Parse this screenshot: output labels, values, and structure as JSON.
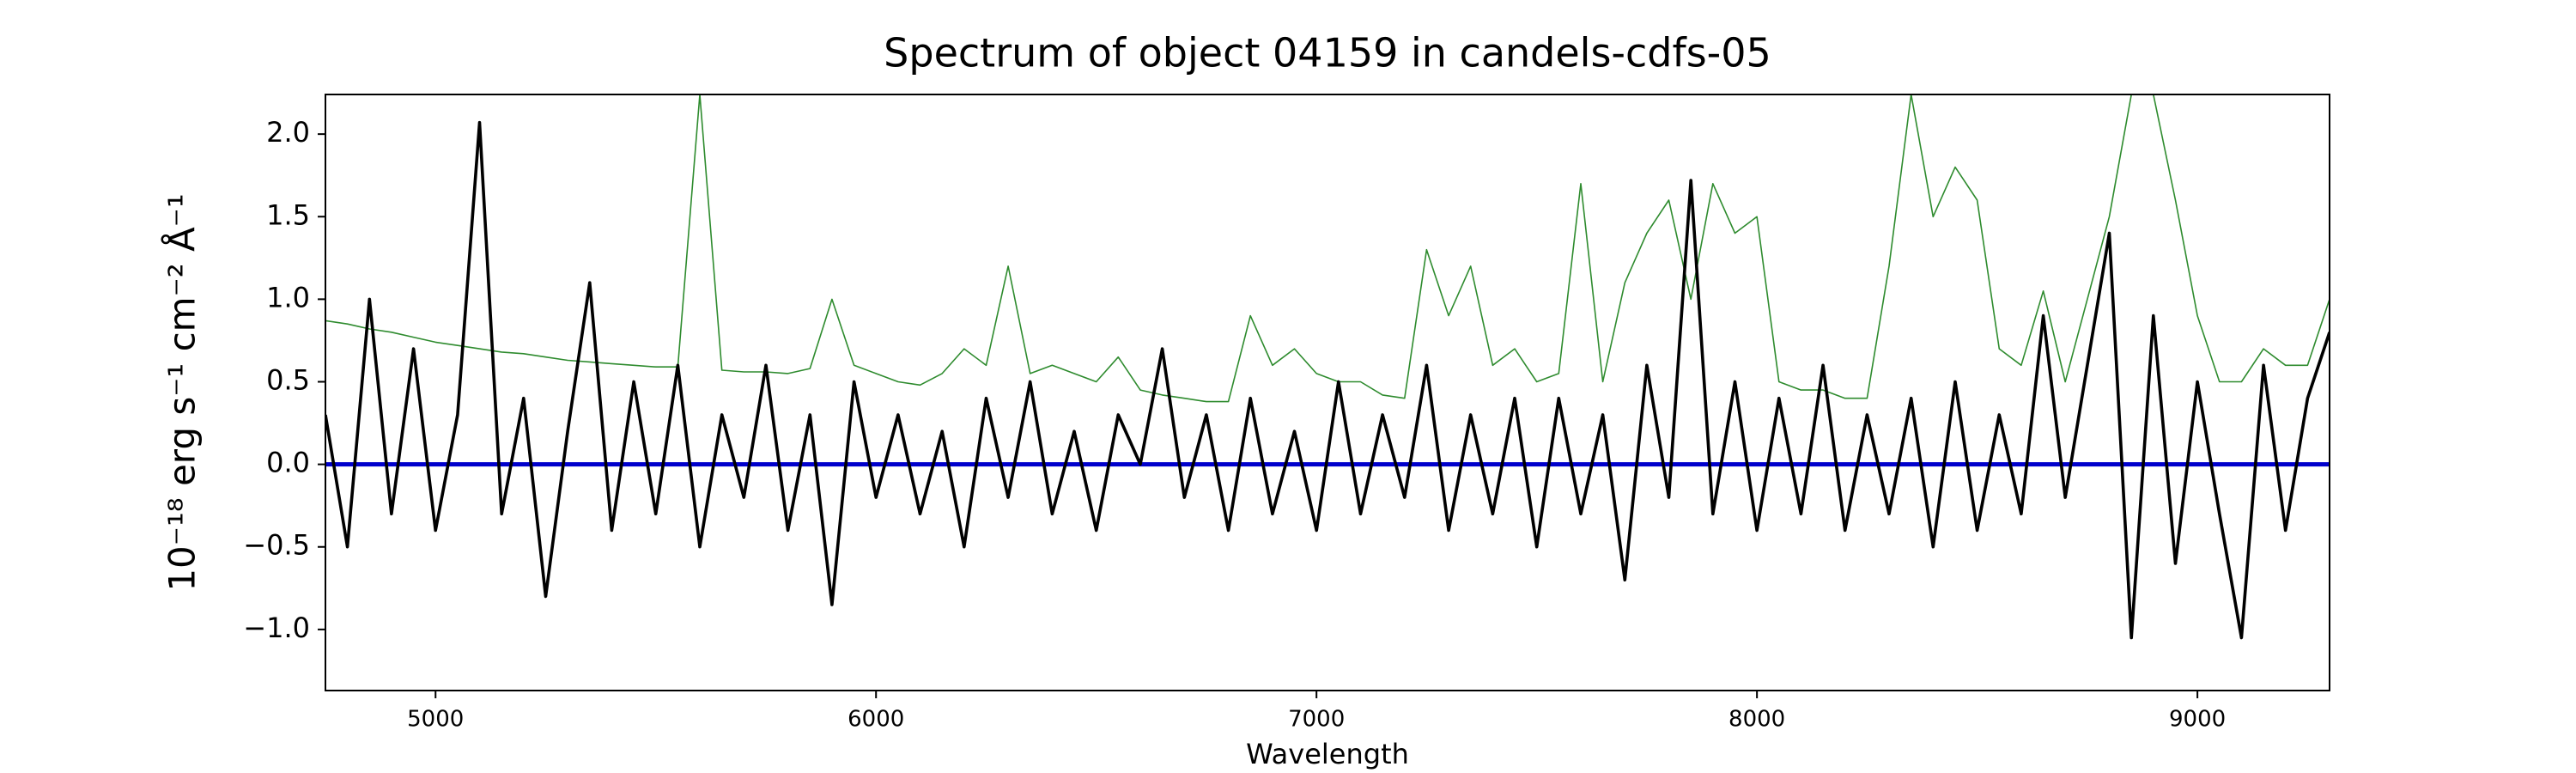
{
  "chart_data": {
    "type": "line",
    "title": "Spectrum of object 04159 in candels-cdfs-05",
    "x_label": "Wavelength",
    "y_label": "10⁻¹⁸ erg s⁻¹ cm⁻² Å⁻¹",
    "x": [
      4750,
      4800,
      4850,
      4900,
      4950,
      5000,
      5050,
      5100,
      5150,
      5200,
      5250,
      5300,
      5350,
      5400,
      5450,
      5500,
      5550,
      5600,
      5650,
      5700,
      5750,
      5800,
      5850,
      5900,
      5950,
      6000,
      6050,
      6100,
      6150,
      6200,
      6250,
      6300,
      6350,
      6400,
      6450,
      6500,
      6550,
      6600,
      6650,
      6700,
      6750,
      6800,
      6850,
      6900,
      6950,
      7000,
      7050,
      7100,
      7150,
      7200,
      7250,
      7300,
      7350,
      7400,
      7450,
      7500,
      7550,
      7600,
      7650,
      7700,
      7750,
      7800,
      7850,
      7900,
      7950,
      8000,
      8050,
      8100,
      8150,
      8200,
      8250,
      8300,
      8350,
      8400,
      8450,
      8500,
      8550,
      8600,
      8650,
      8700,
      8750,
      8800,
      8850,
      8900,
      8950,
      9000,
      9050,
      9100,
      9150,
      9200,
      9250,
      9300
    ],
    "series": [
      {
        "color": "#2e8b2e",
        "width": 1.6,
        "values": [
          0.87,
          0.85,
          0.82,
          0.8,
          0.77,
          0.74,
          0.72,
          0.7,
          0.68,
          0.67,
          0.65,
          0.63,
          0.62,
          0.61,
          0.6,
          0.59,
          0.59,
          2.24,
          0.57,
          0.56,
          0.56,
          0.55,
          0.58,
          1.0,
          0.6,
          0.55,
          0.5,
          0.48,
          0.55,
          0.7,
          0.6,
          1.2,
          0.55,
          0.6,
          0.55,
          0.5,
          0.65,
          0.45,
          0.42,
          0.4,
          0.38,
          0.38,
          0.9,
          0.6,
          0.7,
          0.55,
          0.5,
          0.5,
          0.42,
          0.4,
          1.3,
          0.9,
          1.2,
          0.6,
          0.7,
          0.5,
          0.55,
          1.7,
          0.5,
          1.1,
          1.4,
          1.6,
          1.0,
          1.7,
          1.4,
          1.5,
          0.5,
          0.45,
          0.45,
          0.4,
          0.4,
          1.2,
          2.24,
          1.5,
          1.8,
          1.6,
          0.7,
          0.6,
          1.05,
          0.5,
          1.0,
          1.5,
          2.24,
          2.24,
          1.6,
          0.9,
          0.5,
          0.5,
          0.7,
          0.6,
          0.6,
          1.0
        ]
      },
      {
        "color": "#0000cc",
        "width": 5,
        "x": [
          4750,
          9300
        ],
        "values": [
          0,
          0
        ]
      },
      {
        "color": "#000000",
        "width": 3.6,
        "values": [
          0.3,
          -0.5,
          1.0,
          -0.3,
          0.7,
          -0.4,
          0.3,
          2.07,
          -0.3,
          0.4,
          -0.8,
          0.2,
          1.1,
          -0.4,
          0.5,
          -0.3,
          0.6,
          -0.5,
          0.3,
          -0.2,
          0.6,
          -0.4,
          0.3,
          -0.85,
          0.5,
          -0.2,
          0.3,
          -0.3,
          0.2,
          -0.5,
          0.4,
          -0.2,
          0.5,
          -0.3,
          0.2,
          -0.4,
          0.3,
          0.0,
          0.7,
          -0.2,
          0.3,
          -0.4,
          0.4,
          -0.3,
          0.2,
          -0.4,
          0.5,
          -0.3,
          0.3,
          -0.2,
          0.6,
          -0.4,
          0.3,
          -0.3,
          0.4,
          -0.5,
          0.4,
          -0.3,
          0.3,
          -0.7,
          0.6,
          -0.2,
          1.72,
          -0.3,
          0.5,
          -0.4,
          0.4,
          -0.3,
          0.6,
          -0.4,
          0.3,
          -0.3,
          0.4,
          -0.5,
          0.5,
          -0.4,
          0.3,
          -0.3,
          0.9,
          -0.2,
          0.6,
          1.4,
          -1.05,
          0.9,
          -0.6,
          0.5,
          -0.3,
          -1.05,
          0.6,
          -0.4,
          0.4,
          0.8
        ]
      }
    ],
    "xlim": [
      4750,
      9300
    ],
    "ylim": [
      -1.37,
      2.24
    ],
    "xticks": [
      5000,
      6000,
      7000,
      8000,
      9000
    ],
    "yticks": [
      {
        "value": -1,
        "label": "−1.0"
      },
      {
        "value": -0.5,
        "label": "−0.5"
      },
      {
        "value": 0,
        "label": "0.0"
      },
      0.5,
      {
        "value": 1,
        "label": "1.0"
      },
      1.5,
      {
        "value": 2,
        "label": "2.0"
      }
    ],
    "grid": false
  }
}
